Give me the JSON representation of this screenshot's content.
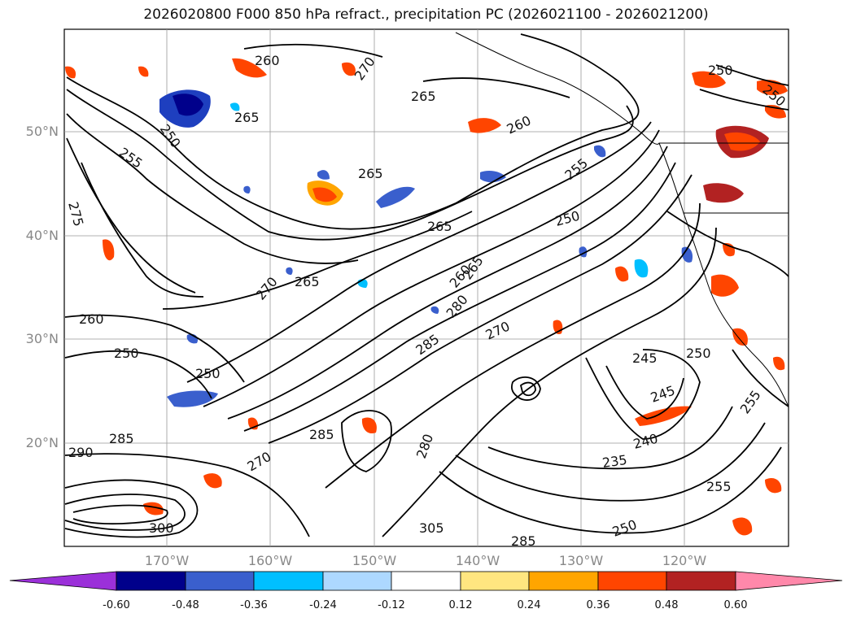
{
  "title": "2026020800 F000 850 hPa refract., precipitation PC (2026021100 - 2026021200)",
  "map": {
    "lat_labels": [
      "50°N",
      "40°N",
      "30°N",
      "20°N"
    ],
    "lon_labels": [
      "170°W",
      "160°W",
      "150°W",
      "140°W",
      "130°W",
      "120°W"
    ],
    "contour_labels": [
      "260",
      "270",
      "265",
      "250",
      "265",
      "260",
      "255",
      "265",
      "265",
      "270",
      "250",
      "250",
      "265",
      "270",
      "280",
      "285",
      "250",
      "260",
      "245",
      "250",
      "245",
      "240",
      "235",
      "250",
      "255",
      "290",
      "285",
      "265",
      "300",
      "285",
      "305",
      "280",
      "255",
      "275",
      "270",
      "250",
      "260",
      "285",
      "250",
      "255"
    ]
  },
  "colorbar": {
    "ticks": [
      "-0.60",
      "-0.48",
      "-0.36",
      "-0.24",
      "-0.12",
      "0.12",
      "0.24",
      "0.36",
      "0.48",
      "0.60"
    ],
    "colors": [
      "#9b30d9",
      "#00008b",
      "#3a5fcd",
      "#00bfff",
      "#add8ff",
      "#ffffff",
      "#ffe680",
      "#ffa500",
      "#ff4500",
      "#b22222",
      "#ff88aa"
    ]
  }
}
